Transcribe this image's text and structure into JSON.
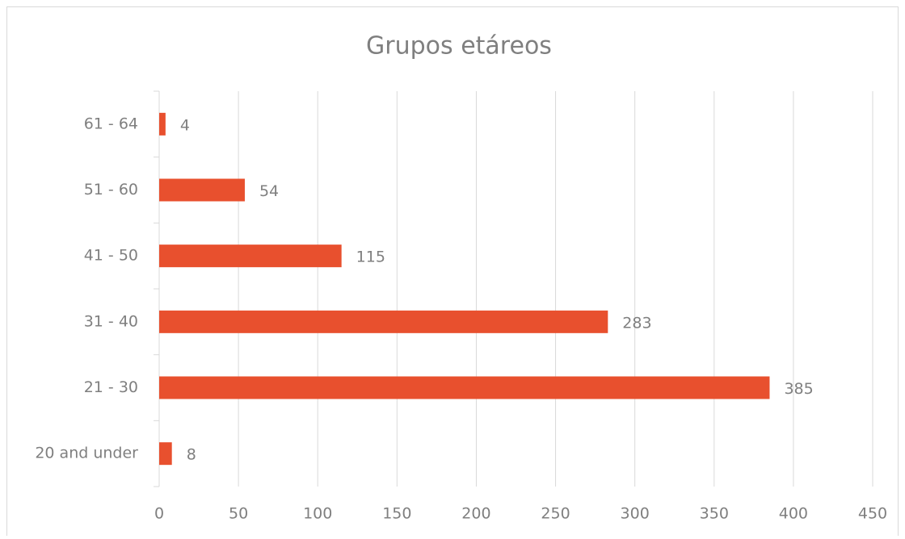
{
  "chart_data": {
    "type": "barh",
    "title": "Grupos etáreos",
    "categories": [
      "61 - 64",
      "51 - 60",
      "41 - 50",
      "31 - 40",
      "21 - 30",
      "20 and under"
    ],
    "values": [
      4,
      54,
      115,
      283,
      385,
      8
    ],
    "color": "#e8502e",
    "xlim": [
      0,
      450
    ],
    "xticks": [
      0,
      50,
      100,
      150,
      200,
      250,
      300,
      350,
      400,
      450
    ],
    "grid": true
  }
}
